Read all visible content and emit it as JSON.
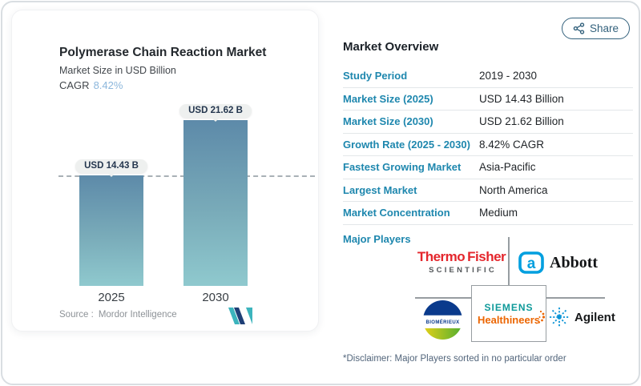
{
  "share_button": {
    "label": "Share",
    "icon": "share-nodes-icon"
  },
  "chart_panel": {
    "title": "Polymerase Chain Reaction Market",
    "subtitle": "Market Size in USD Billion",
    "cagr_label": "CAGR",
    "cagr_value": "8.42%",
    "source_label": "Source :",
    "source_name": "Mordor Intelligence",
    "logo": "mordor-intelligence-monogram"
  },
  "chart_data": {
    "type": "bar",
    "title": "Polymerase Chain Reaction Market",
    "ylabel": "Market Size in USD Billion",
    "categories": [
      "2025",
      "2030"
    ],
    "values": [
      14.43,
      21.62
    ],
    "value_labels": [
      "USD 14.43 B",
      "USD 21.62 B"
    ],
    "cagr_pct": 8.42,
    "ylim": [
      0,
      22
    ],
    "grid": false,
    "legend": "none",
    "annotations": [
      "horizontal dashed reference line at 2025 bar top (14.43)"
    ],
    "bar_gradient": [
      "#5d8aa9",
      "#8fc9ce"
    ]
  },
  "overview": {
    "title": "Market Overview",
    "rows": [
      {
        "label": "Study Period",
        "value": "2019 - 2030"
      },
      {
        "label": "Market Size (2025)",
        "value": "USD 14.43 Billion"
      },
      {
        "label": "Market Size (2030)",
        "value": "USD 21.62 Billion"
      },
      {
        "label": "Growth Rate (2025 - 2030)",
        "value": "8.42% CAGR"
      },
      {
        "label": "Fastest Growing Market",
        "value": "Asia-Pacific"
      },
      {
        "label": "Largest Market",
        "value": "North America"
      },
      {
        "label": "Market Concentration",
        "value": "Medium"
      }
    ],
    "major_players_label": "Major Players",
    "players": {
      "thermo_fisher": {
        "line1a": "Thermo",
        "line1b": "Fisher",
        "line2": "SCIENTIFIC"
      },
      "abbott": {
        "symbol": "a",
        "name": "Abbott"
      },
      "biomerieux": {
        "name": "BIOMÉRIEUX"
      },
      "siemens": {
        "line1": "SIEMENS",
        "line2": "Healthineers"
      },
      "agilent": {
        "name": "Agilent"
      }
    },
    "disclaimer": "*Disclaimer: Major Players sorted in no particular order"
  },
  "colors": {
    "accent_blue": "#1e87ae",
    "cagr_light_blue": "#8cb7dc",
    "bar_top": "#5d8aa9",
    "bar_bottom": "#8fc9ce",
    "dash_gray": "#a9b1b6",
    "tooltip_bg": "#eef0ef",
    "share_teal": "#33617c",
    "thermo_red": "#e4262c",
    "abbott_blue": "#009fdf",
    "siemens_teal": "#0f9a9a",
    "siemens_orange": "#ec6602",
    "agilent_blue": "#0b93d6",
    "biomerieux_navy": "#0a3a8c",
    "mordor_teal": "#3cb4bd",
    "mordor_navy": "#1e3f76"
  }
}
